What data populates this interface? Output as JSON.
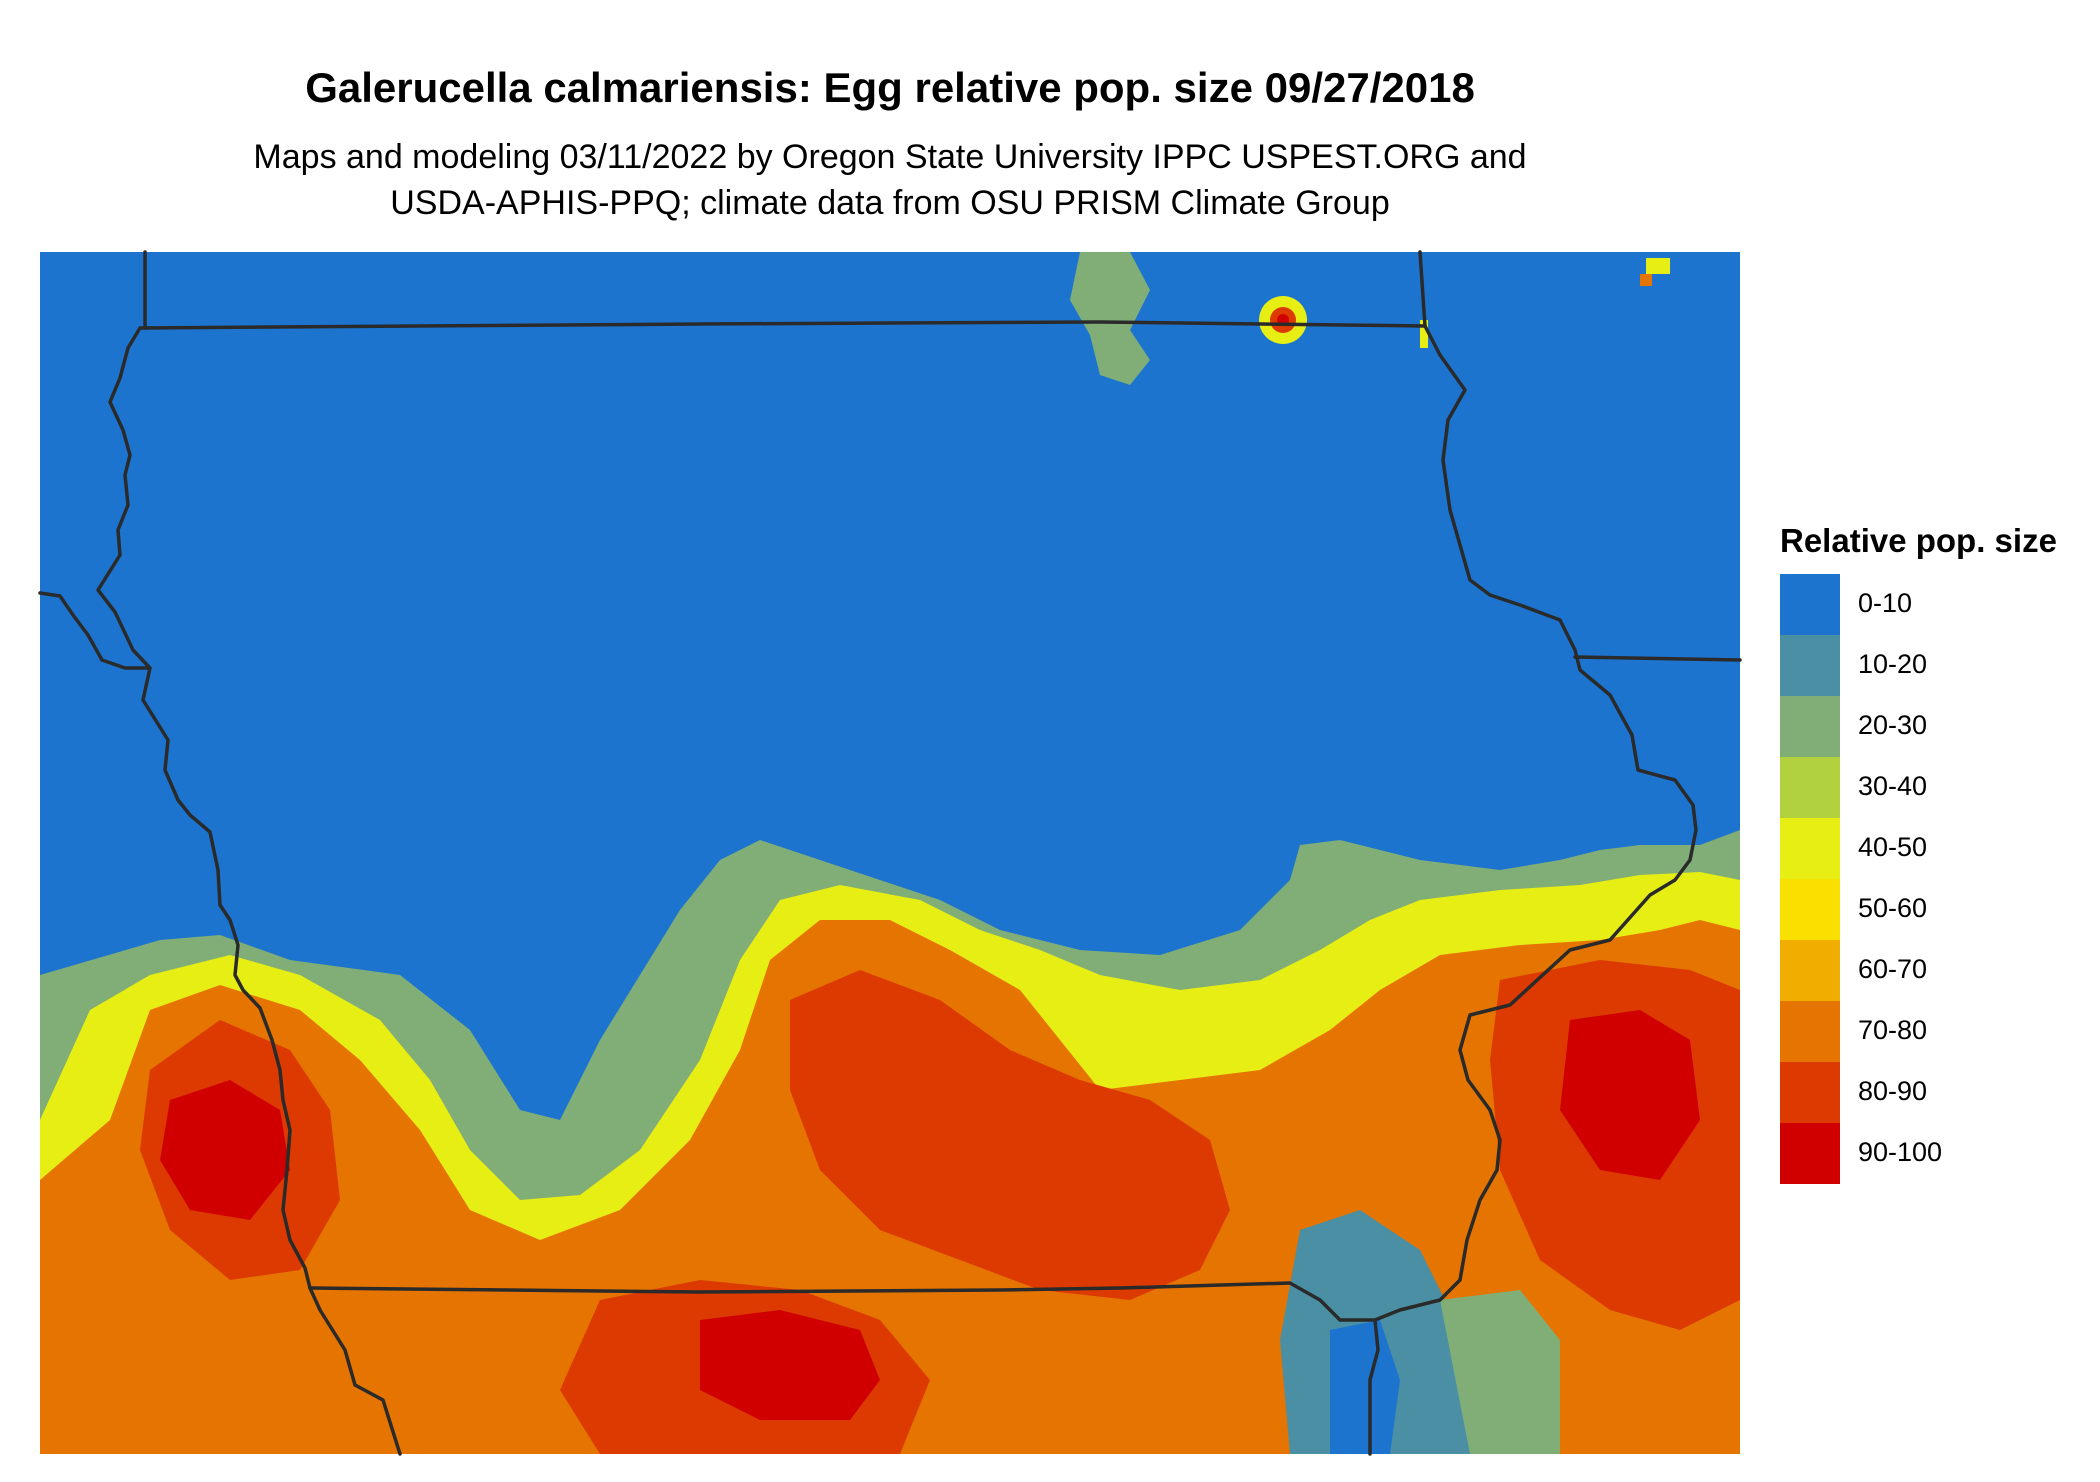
{
  "title": "Galerucella calmariensis: Egg relative pop. size 09/27/2018",
  "subtitle_lines": [
    "Maps and modeling 03/11/2022 by Oregon State University IPPC USPEST.ORG and",
    "USDA-APHIS-PPQ; climate data from OSU PRISM Climate Group"
  ],
  "legend": {
    "title": "Relative pop. size",
    "items": [
      {
        "label": "0-10",
        "color": "#1c74cf"
      },
      {
        "label": "10-20",
        "color": "#4a8fa3"
      },
      {
        "label": "20-30",
        "color": "#80ae76"
      },
      {
        "label": "30-40",
        "color": "#b2d13f"
      },
      {
        "label": "40-50",
        "color": "#e6ee13"
      },
      {
        "label": "50-60",
        "color": "#f9e000"
      },
      {
        "label": "60-70",
        "color": "#f2ae00"
      },
      {
        "label": "70-80",
        "color": "#e67400"
      },
      {
        "label": "80-90",
        "color": "#dc3a00"
      },
      {
        "label": "90-100",
        "color": "#d00000"
      }
    ]
  },
  "map": {
    "region": "Iowa and surrounding area",
    "border_color": "#2a2a2a"
  }
}
